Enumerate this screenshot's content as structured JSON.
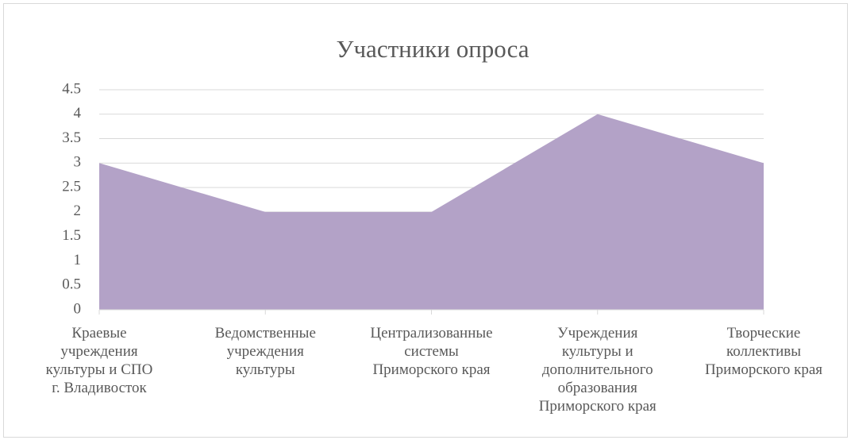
{
  "chart_data": {
    "type": "area",
    "title": "Участники опроса",
    "categories": [
      "Краевые\nучреждения\nкультуры и СПО\nг. Владивосток",
      "Ведомственные\nучреждения\nкультуры",
      "Централизованные\nсистемы\nПриморского края",
      "Учреждения\nкультуры и\nдополнительного\nобразования\nПриморского края",
      "Творческие\nколлективы\nПриморского края"
    ],
    "values": [
      3,
      2,
      2,
      4,
      3
    ],
    "color": "#b3a2c7",
    "ylim": [
      0,
      4.5
    ],
    "yticks": [
      0,
      0.5,
      1,
      1.5,
      2,
      2.5,
      3,
      3.5,
      4,
      4.5
    ],
    "grid": true
  }
}
